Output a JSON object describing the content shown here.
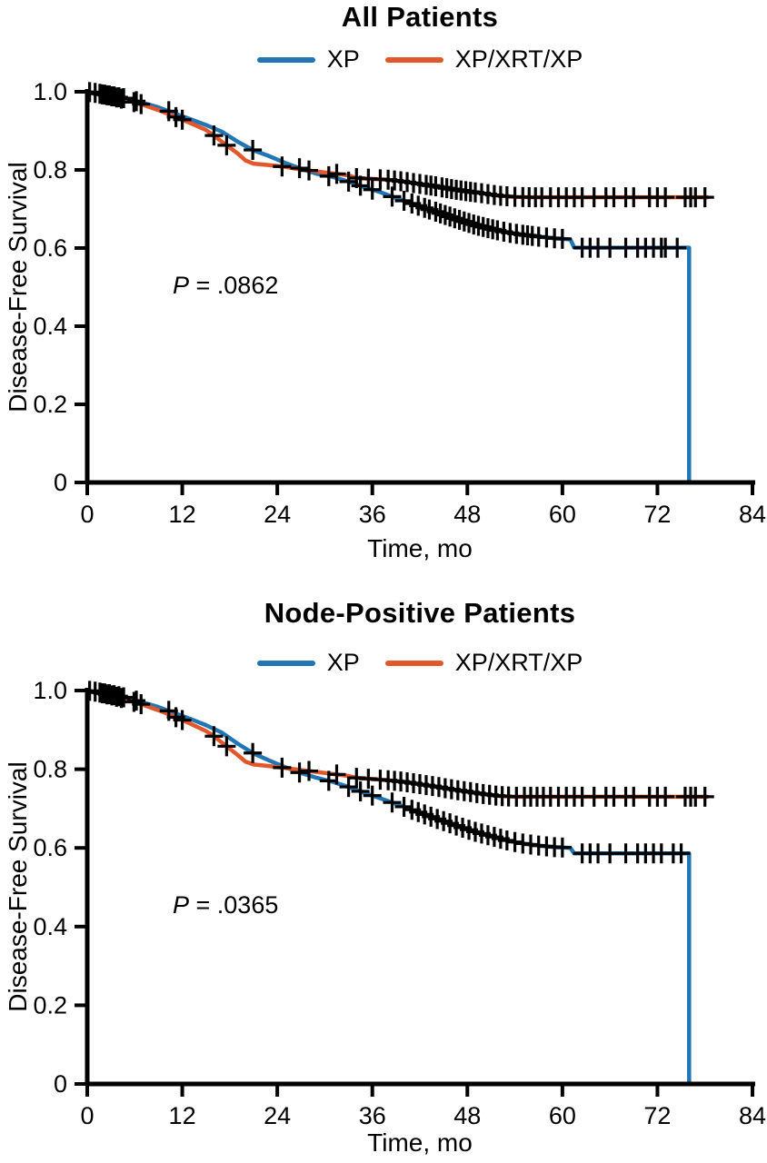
{
  "colors": {
    "xp": "#2276B4",
    "xp_xrt_xp": "#E2572C",
    "axis": "#000000",
    "censor": "#000000",
    "background": "#FFFFFF"
  },
  "chart_data": [
    {
      "type": "line",
      "subtype": "kaplan-meier",
      "title": "All Patients",
      "p_value": {
        "prefix": "P",
        "rest": " = .0862"
      },
      "xlabel": "Time, mo",
      "ylabel": "Disease-Free Survival",
      "xlim": [
        0,
        84
      ],
      "ylim": [
        0,
        1.0
      ],
      "x_tick_values": [
        0,
        12,
        24,
        36,
        48,
        60,
        72,
        84
      ],
      "x_tick_labels": [
        "0",
        "12",
        "24",
        "36",
        "48",
        "60",
        "72",
        "84"
      ],
      "y_tick_values": [
        0,
        0.2,
        0.4,
        0.6,
        0.8,
        1.0
      ],
      "y_tick_labels": [
        "0",
        "0.2",
        "0.4",
        "0.6",
        "0.8",
        "1.0"
      ],
      "grid": false,
      "legend_position": "top-center",
      "series": [
        {
          "name": "XP",
          "color": "#2276B4",
          "points": [
            [
              0,
              1.0
            ],
            [
              1,
              0.997
            ],
            [
              3,
              0.99
            ],
            [
              5,
              0.982
            ],
            [
              7,
              0.972
            ],
            [
              9,
              0.96
            ],
            [
              11,
              0.945
            ],
            [
              13,
              0.93
            ],
            [
              15,
              0.915
            ],
            [
              17,
              0.898
            ],
            [
              19,
              0.872
            ],
            [
              21,
              0.85
            ],
            [
              23,
              0.835
            ],
            [
              25,
              0.818
            ],
            [
              27,
              0.803
            ],
            [
              29,
              0.79
            ],
            [
              31,
              0.782
            ],
            [
              33,
              0.77
            ],
            [
              35,
              0.756
            ],
            [
              37,
              0.743
            ],
            [
              39,
              0.728
            ],
            [
              41,
              0.714
            ],
            [
              43,
              0.7
            ],
            [
              45,
              0.686
            ],
            [
              47,
              0.672
            ],
            [
              49,
              0.659
            ],
            [
              51,
              0.649
            ],
            [
              53,
              0.64
            ],
            [
              55,
              0.634
            ],
            [
              57,
              0.629
            ],
            [
              59,
              0.625
            ],
            [
              61,
              0.622
            ],
            [
              61.5,
              0.601
            ],
            [
              76,
              0.601
            ],
            [
              76,
              0
            ]
          ],
          "censor_times": [
            0.3,
            1.6,
            2.2,
            2.8,
            3.4,
            4.0,
            4.6,
            6.2,
            10.3,
            20.9,
            26.8,
            30.5,
            33.0,
            34.5,
            36.0,
            38.5,
            40.0,
            41.0,
            41.8,
            42.6,
            43.2,
            44.0,
            44.6,
            45.2,
            45.8,
            46.4,
            47.0,
            47.6,
            48.2,
            48.8,
            49.4,
            50.0,
            50.6,
            51.2,
            51.8,
            52.6,
            53.4,
            54.2,
            55.0,
            55.6,
            56.2,
            57.0,
            58.0,
            59.0,
            60.0,
            62.5,
            63.5,
            64.5,
            66.0,
            68.0,
            69.5,
            70.5,
            71.5,
            72.5,
            73.0,
            74.5
          ]
        },
        {
          "name": "XP/XRT/XP",
          "color": "#E2572C",
          "points": [
            [
              0,
              1.0
            ],
            [
              1,
              0.997
            ],
            [
              3,
              0.989
            ],
            [
              5,
              0.979
            ],
            [
              7,
              0.967
            ],
            [
              9,
              0.953
            ],
            [
              11,
              0.937
            ],
            [
              13,
              0.92
            ],
            [
              15,
              0.902
            ],
            [
              16,
              0.888
            ],
            [
              17,
              0.872
            ],
            [
              18,
              0.857
            ],
            [
              19,
              0.842
            ],
            [
              20,
              0.824
            ],
            [
              21,
              0.816
            ],
            [
              23,
              0.812
            ],
            [
              25,
              0.808
            ],
            [
              27,
              0.801
            ],
            [
              29,
              0.796
            ],
            [
              31,
              0.791
            ],
            [
              33,
              0.786
            ],
            [
              34,
              0.779
            ],
            [
              36,
              0.777
            ],
            [
              38,
              0.775
            ],
            [
              40,
              0.77
            ],
            [
              42,
              0.764
            ],
            [
              44,
              0.758
            ],
            [
              46,
              0.751
            ],
            [
              48,
              0.745
            ],
            [
              50,
              0.74
            ],
            [
              52,
              0.734
            ],
            [
              54,
              0.731
            ],
            [
              56,
              0.73
            ],
            [
              78.3,
              0.73
            ]
          ],
          "censor_times": [
            1.0,
            1.9,
            2.5,
            3.1,
            3.7,
            4.3,
            5.9,
            6.8,
            11.2,
            12.0,
            16.0,
            17.6,
            24.6,
            28.0,
            31.5,
            34.0,
            35.5,
            37.0,
            38.0,
            38.8,
            39.6,
            40.4,
            41.2,
            42.0,
            42.8,
            43.4,
            44.0,
            44.8,
            45.4,
            46.0,
            46.6,
            47.2,
            47.8,
            48.4,
            49.0,
            49.8,
            50.6,
            51.4,
            52.2,
            53.0,
            54.0,
            55.0,
            55.8,
            56.6,
            57.4,
            58.5,
            59.5,
            60.5,
            61.5,
            62.5,
            64.0,
            65.5,
            66.5,
            68.0,
            69.0,
            71.0,
            72.0,
            73.0,
            75.5,
            76.2,
            76.8,
            78.0
          ]
        }
      ]
    },
    {
      "type": "line",
      "subtype": "kaplan-meier",
      "title": "Node-Positive Patients",
      "p_value": {
        "prefix": "P",
        "rest": " = .0365"
      },
      "xlabel": "Time, mo",
      "ylabel": "Disease-Free Survival",
      "xlim": [
        0,
        84
      ],
      "ylim": [
        0,
        1.0
      ],
      "x_tick_values": [
        0,
        12,
        24,
        36,
        48,
        60,
        72,
        84
      ],
      "x_tick_labels": [
        "0",
        "12",
        "24",
        "36",
        "48",
        "60",
        "72",
        "84"
      ],
      "y_tick_values": [
        0,
        0.2,
        0.4,
        0.6,
        0.8,
        1.0
      ],
      "y_tick_labels": [
        "0",
        "0.2",
        "0.4",
        "0.6",
        "0.8",
        "1.0"
      ],
      "grid": false,
      "legend_position": "top-center",
      "series": [
        {
          "name": "XP",
          "color": "#2276B4",
          "points": [
            [
              0,
              1.0
            ],
            [
              1,
              0.997
            ],
            [
              3,
              0.99
            ],
            [
              5,
              0.981
            ],
            [
              7,
              0.97
            ],
            [
              9,
              0.958
            ],
            [
              11,
              0.943
            ],
            [
              13,
              0.928
            ],
            [
              15,
              0.912
            ],
            [
              17,
              0.893
            ],
            [
              19,
              0.865
            ],
            [
              21,
              0.84
            ],
            [
              23,
              0.822
            ],
            [
              25,
              0.805
            ],
            [
              27,
              0.79
            ],
            [
              29,
              0.778
            ],
            [
              31,
              0.768
            ],
            [
              33,
              0.755
            ],
            [
              35,
              0.74
            ],
            [
              37,
              0.726
            ],
            [
              39,
              0.712
            ],
            [
              41,
              0.697
            ],
            [
              43,
              0.682
            ],
            [
              45,
              0.668
            ],
            [
              47,
              0.654
            ],
            [
              49,
              0.641
            ],
            [
              51,
              0.63
            ],
            [
              53,
              0.619
            ],
            [
              55,
              0.611
            ],
            [
              57,
              0.606
            ],
            [
              59,
              0.602
            ],
            [
              61,
              0.6
            ],
            [
              61.5,
              0.586
            ],
            [
              76,
              0.586
            ],
            [
              76,
              0
            ]
          ],
          "censor_times": [
            0.3,
            1.6,
            2.2,
            2.8,
            3.4,
            4.0,
            4.6,
            6.2,
            10.3,
            20.9,
            26.8,
            30.5,
            33.0,
            34.5,
            36.0,
            38.5,
            40.0,
            41.0,
            41.8,
            42.6,
            43.4,
            44.2,
            45.0,
            45.8,
            46.6,
            47.4,
            48.2,
            49.0,
            49.8,
            50.6,
            51.4,
            52.2,
            53.0,
            54.0,
            55.0,
            56.0,
            57.0,
            58.0,
            59.0,
            60.0,
            62.5,
            63.5,
            64.5,
            66.0,
            68.0,
            69.5,
            70.5,
            71.5,
            72.5,
            74.0,
            75.0
          ]
        },
        {
          "name": "XP/XRT/XP",
          "color": "#E2572C",
          "points": [
            [
              0,
              1.0
            ],
            [
              1,
              0.997
            ],
            [
              3,
              0.988
            ],
            [
              5,
              0.977
            ],
            [
              7,
              0.964
            ],
            [
              9,
              0.95
            ],
            [
              11,
              0.934
            ],
            [
              13,
              0.916
            ],
            [
              15,
              0.897
            ],
            [
              16,
              0.884
            ],
            [
              17,
              0.868
            ],
            [
              18,
              0.852
            ],
            [
              19,
              0.836
            ],
            [
              20,
              0.819
            ],
            [
              21,
              0.812
            ],
            [
              23,
              0.808
            ],
            [
              25,
              0.803
            ],
            [
              27,
              0.798
            ],
            [
              29,
              0.793
            ],
            [
              31,
              0.788
            ],
            [
              33,
              0.783
            ],
            [
              34,
              0.778
            ],
            [
              36,
              0.775
            ],
            [
              38,
              0.772
            ],
            [
              40,
              0.768
            ],
            [
              42,
              0.762
            ],
            [
              44,
              0.756
            ],
            [
              46,
              0.749
            ],
            [
              48,
              0.743
            ],
            [
              50,
              0.737
            ],
            [
              52,
              0.732
            ],
            [
              54,
              0.73
            ],
            [
              78.3,
              0.73
            ]
          ],
          "censor_times": [
            1.0,
            1.9,
            2.5,
            3.1,
            3.7,
            4.3,
            5.9,
            6.8,
            11.2,
            12.0,
            16.0,
            17.6,
            24.6,
            28.0,
            31.5,
            34.0,
            35.5,
            37.0,
            38.0,
            38.8,
            39.6,
            40.4,
            41.2,
            42.0,
            42.8,
            43.6,
            44.4,
            45.2,
            46.0,
            46.8,
            47.6,
            48.4,
            49.2,
            50.0,
            50.8,
            51.6,
            52.4,
            53.2,
            54.2,
            55.2,
            56.0,
            56.8,
            57.6,
            58.5,
            59.5,
            60.5,
            61.5,
            62.5,
            64.0,
            65.5,
            66.5,
            68.0,
            69.0,
            71.0,
            72.0,
            73.0,
            75.5,
            76.2,
            76.8,
            78.0
          ]
        }
      ]
    }
  ]
}
